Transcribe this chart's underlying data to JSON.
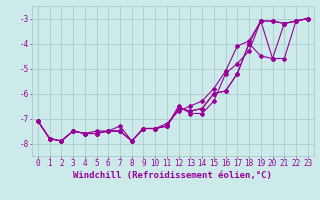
{
  "xlabel": "Windchill (Refroidissement éolien,°C)",
  "ylabel": "",
  "background_color": "#cceaea",
  "grid_color": "#aacccc",
  "line_color": "#990099",
  "x_values": [
    0,
    1,
    2,
    3,
    4,
    5,
    6,
    7,
    8,
    9,
    10,
    11,
    12,
    13,
    14,
    15,
    16,
    17,
    18,
    19,
    20,
    21,
    22,
    23
  ],
  "lines": [
    [
      -7.1,
      -7.8,
      -7.9,
      -7.5,
      -7.6,
      -7.6,
      -7.5,
      -7.5,
      -7.9,
      -7.4,
      -7.4,
      -7.3,
      -6.6,
      -6.7,
      -6.6,
      -6.0,
      -5.9,
      -5.2,
      -4.0,
      -3.1,
      -3.1,
      -3.2,
      -3.1,
      -3.0
    ],
    [
      -7.1,
      -7.8,
      -7.9,
      -7.5,
      -7.6,
      -7.5,
      -7.5,
      -7.3,
      -7.9,
      -7.4,
      -7.4,
      -7.2,
      -6.7,
      -6.5,
      -6.3,
      -5.8,
      -5.1,
      -4.1,
      -3.9,
      -3.1,
      -3.1,
      -3.2,
      -3.1,
      -3.0
    ],
    [
      -7.1,
      -7.8,
      -7.9,
      -7.5,
      -7.6,
      -7.6,
      -7.5,
      -7.5,
      -7.9,
      -7.4,
      -7.4,
      -7.3,
      -6.5,
      -6.8,
      -6.8,
      -6.3,
      -5.2,
      -4.8,
      -4.3,
      -3.1,
      -4.6,
      -3.2,
      -3.1,
      -3.0
    ],
    [
      -7.1,
      -7.8,
      -7.9,
      -7.5,
      -7.6,
      -7.6,
      -7.5,
      -7.5,
      -7.9,
      -7.4,
      -7.4,
      -7.3,
      -6.6,
      -6.7,
      -6.6,
      -6.0,
      -5.9,
      -5.2,
      -4.0,
      -4.5,
      -4.6,
      -4.6,
      -3.1,
      -3.0
    ]
  ],
  "ylim": [
    -8.5,
    -2.5
  ],
  "xlim": [
    -0.5,
    23.5
  ],
  "yticks": [
    -8,
    -7,
    -6,
    -5,
    -4,
    -3
  ],
  "xticks": [
    0,
    1,
    2,
    3,
    4,
    5,
    6,
    7,
    8,
    9,
    10,
    11,
    12,
    13,
    14,
    15,
    16,
    17,
    18,
    19,
    20,
    21,
    22,
    23
  ],
  "font_family": "monospace",
  "fontsize_xlabel": 6.5,
  "fontsize_tick": 5.5,
  "marker": "D",
  "markersize": 2.0,
  "linewidth": 0.8
}
